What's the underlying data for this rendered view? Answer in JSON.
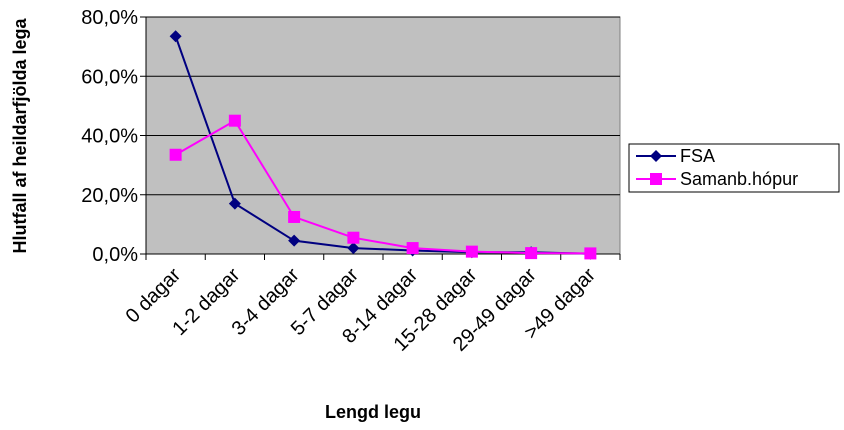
{
  "chart_data": {
    "type": "line",
    "categories": [
      "0 dagar",
      "1-2 dagar",
      "3-4 dagar",
      "5-7 dagar",
      "8-14 dagar",
      "15-28 dagar",
      "29-49 dagar",
      ">49 dagar"
    ],
    "series": [
      {
        "name": "FSA",
        "values": [
          73.5,
          17.0,
          4.5,
          2.0,
          1.2,
          0.6,
          0.6,
          0.1
        ],
        "color": "#000080",
        "marker": "diamond"
      },
      {
        "name": "Samanb.hópur",
        "values": [
          33.5,
          45.0,
          12.5,
          5.5,
          2.0,
          0.8,
          0.3,
          0.2
        ],
        "color": "#ff00ff",
        "marker": "square"
      }
    ],
    "title": "",
    "xlabel": "Lengd legu",
    "ylabel": "Hlutfall af heildarfjölda lega",
    "ylim": [
      0,
      80
    ],
    "yticks": [
      0,
      20,
      40,
      60,
      80
    ],
    "ytick_labels": [
      "0,0%",
      "20,0%",
      "40,0%",
      "60,0%",
      "80,0%"
    ],
    "grid": true,
    "legend": "right",
    "plot_background": "#c0c0c0"
  }
}
